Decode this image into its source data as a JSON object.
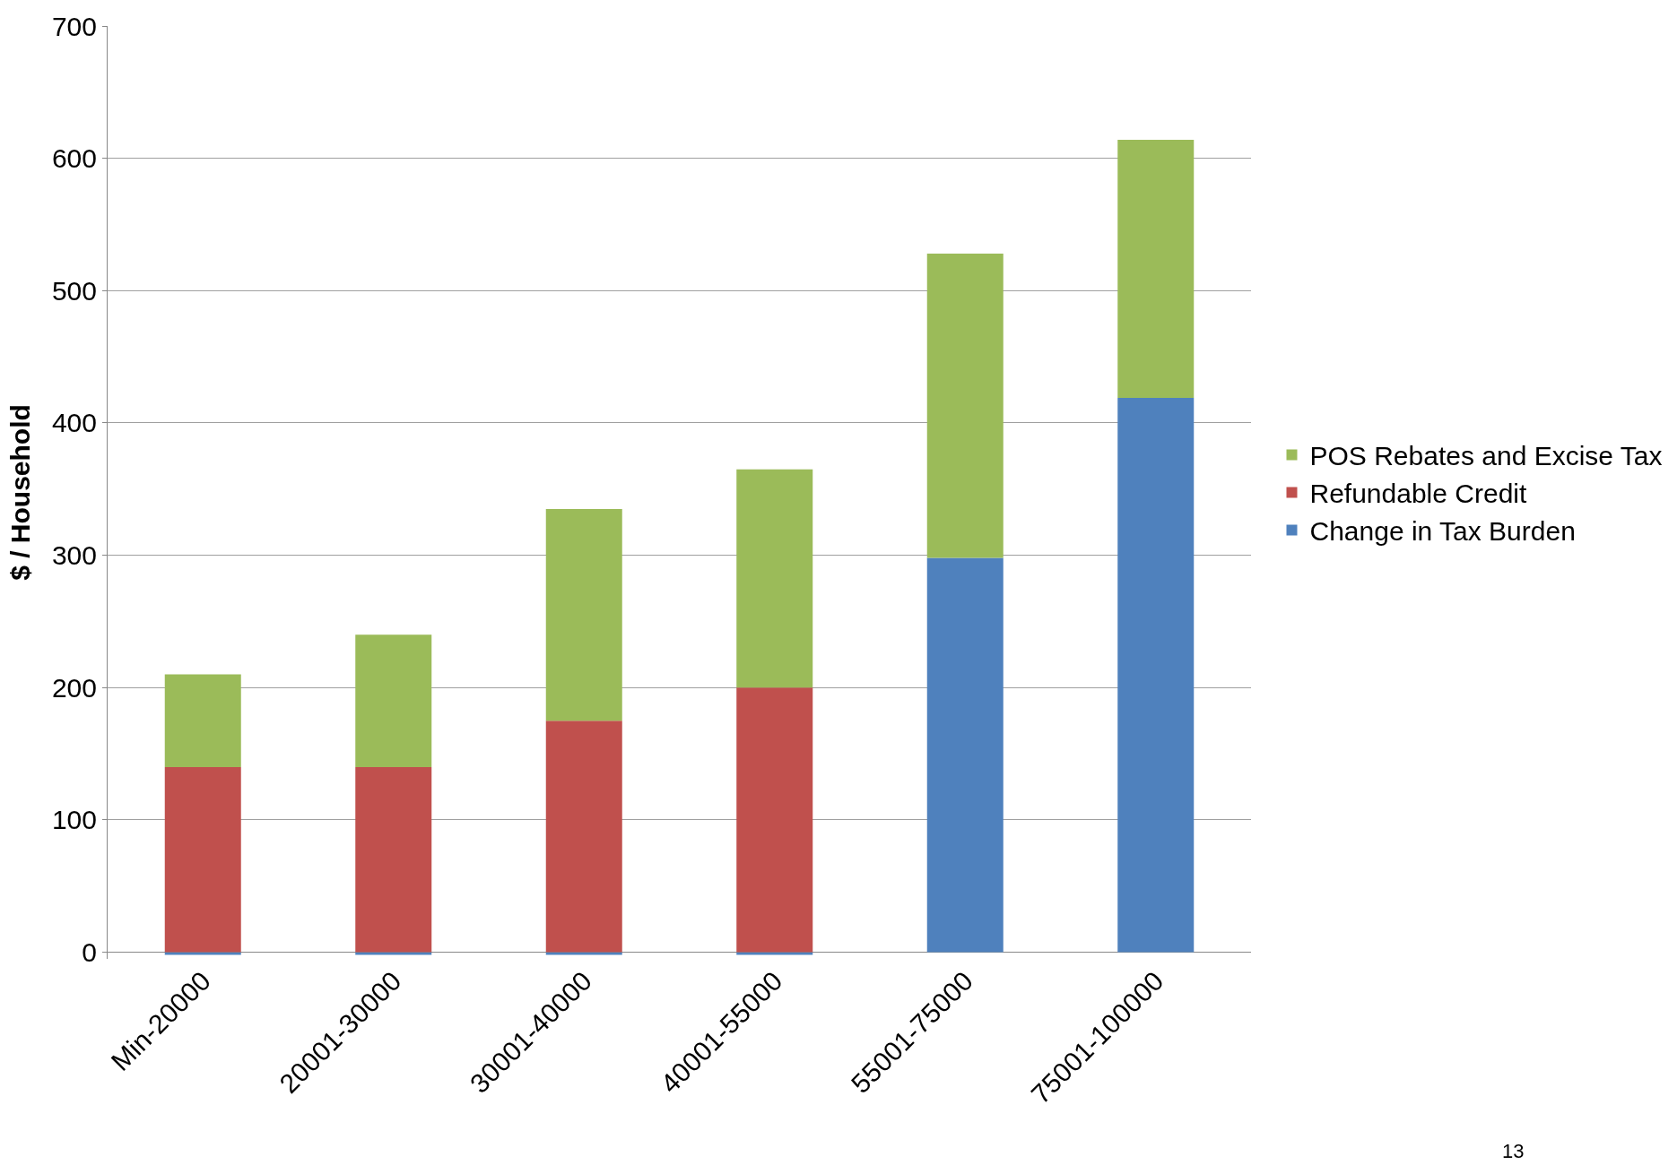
{
  "chart_data": {
    "type": "bar",
    "stacked": true,
    "ylabel": "$ / Household",
    "categories": [
      "Min-20000",
      "20001-30000",
      "30001-40000",
      "40001-55000",
      "55001-75000",
      "75001-100000"
    ],
    "series": [
      {
        "name": "Change in Tax Burden",
        "color": "#4f81bd",
        "values": [
          -2,
          -2,
          -2,
          -2,
          298,
          419
        ]
      },
      {
        "name": "Refundable Credit",
        "color": "#c0504d",
        "values": [
          140,
          140,
          175,
          200,
          0,
          0
        ]
      },
      {
        "name": "POS Rebates and Excise Tax",
        "color": "#9bbb59",
        "values": [
          70,
          100,
          160,
          165,
          230,
          195
        ]
      }
    ],
    "ylim": [
      -5,
      700
    ],
    "yticks": [
      0,
      100,
      200,
      300,
      400,
      500,
      600,
      700
    ],
    "grid": "y",
    "legend": "right",
    "annotations": [
      "13"
    ]
  }
}
